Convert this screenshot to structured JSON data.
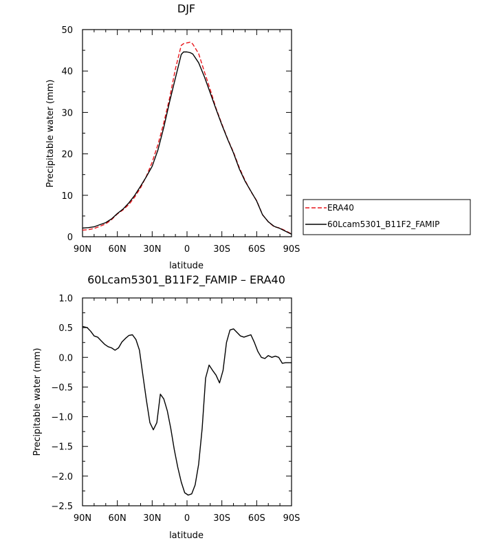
{
  "colors": {
    "era40": "#e8141a",
    "model": "#000000",
    "axis": "#000000"
  },
  "chart_data": [
    {
      "type": "line",
      "title": "DJF",
      "xlabel": "latitude",
      "ylabel": "Precipitable water (mm)",
      "xlim": [
        90,
        -90
      ],
      "ylim": [
        0,
        50
      ],
      "xticks": [
        90,
        60,
        30,
        0,
        -30,
        -60,
        -90
      ],
      "xtick_labels": [
        "90N",
        "60N",
        "30N",
        "0",
        "30S",
        "60S",
        "90S"
      ],
      "yticks": [
        0,
        10,
        20,
        30,
        40,
        50
      ],
      "ytick_labels": [
        "0",
        "10",
        "20",
        "30",
        "40",
        "50"
      ],
      "legend_position": "outside-right",
      "x": [
        90,
        85,
        80,
        75,
        70,
        65,
        60,
        55,
        50,
        45,
        40,
        35,
        30,
        25,
        20,
        15,
        10,
        5,
        3,
        0,
        -3,
        -5,
        -10,
        -15,
        -20,
        -25,
        -30,
        -35,
        -40,
        -45,
        -50,
        -55,
        -60,
        -65,
        -70,
        -75,
        -80,
        -85,
        -90
      ],
      "series": [
        {
          "name": "ERA40",
          "style": "dashed",
          "color": "#e8141a",
          "values": [
            1.6,
            1.7,
            2.0,
            2.5,
            3.1,
            4.1,
            5.5,
            6.5,
            7.8,
            9.6,
            11.8,
            14.6,
            18.0,
            22.3,
            27.5,
            33.5,
            40.5,
            46.2,
            46.6,
            46.8,
            47.0,
            46.5,
            44.2,
            39.8,
            35.5,
            31.0,
            27.2,
            23.6,
            20.4,
            16.7,
            13.6,
            10.9,
            8.7,
            5.3,
            3.6,
            2.4,
            2.1,
            1.4,
            0.7
          ]
        },
        {
          "name": "60Lcam5301_B11F2_FAMIP",
          "style": "solid",
          "color": "#000000",
          "values": [
            2.1,
            2.2,
            2.4,
            2.9,
            3.4,
            4.3,
            5.6,
            6.7,
            8.2,
            10.0,
            12.2,
            14.5,
            17.0,
            21.0,
            26.4,
            32.6,
            38.3,
            44.0,
            44.6,
            44.6,
            44.4,
            44.1,
            42.0,
            38.6,
            34.7,
            30.8,
            27.0,
            23.5,
            20.2,
            16.4,
            13.4,
            11.0,
            8.6,
            5.3,
            3.6,
            2.5,
            2.0,
            1.3,
            0.6
          ]
        }
      ]
    },
    {
      "type": "line",
      "title": "60Lcam5301_B11F2_FAMIP – ERA40",
      "xlabel": "latitude",
      "ylabel": "Precipitable water (mm)",
      "xlim": [
        90,
        -90
      ],
      "ylim": [
        -2.5,
        1.0
      ],
      "xticks": [
        90,
        60,
        30,
        0,
        -30,
        -60,
        -90
      ],
      "xtick_labels": [
        "90N",
        "60N",
        "30N",
        "0",
        "30S",
        "60S",
        "90S"
      ],
      "yticks": [
        1.0,
        0.5,
        0.0,
        -0.5,
        -1.0,
        -1.5,
        -2.0,
        -2.5
      ],
      "ytick_labels": [
        "1.0",
        "0.5",
        "0.0",
        "−0.5",
        "−1.0",
        "−1.5",
        "−2.0",
        "−2.5"
      ],
      "x": [
        90,
        86,
        83,
        80,
        77,
        74,
        71,
        68,
        65,
        62,
        59,
        56,
        53,
        50,
        47,
        44,
        41,
        38,
        35,
        32,
        29,
        26,
        23,
        20,
        17,
        14,
        11,
        8,
        5,
        2,
        -1,
        -4,
        -7,
        -10,
        -13,
        -16,
        -19,
        -22,
        -25,
        -28,
        -31,
        -34,
        -37,
        -40,
        -43,
        -46,
        -49,
        -52,
        -55,
        -58,
        -61,
        -64,
        -67,
        -70,
        -73,
        -76,
        -79,
        -82,
        -85,
        -88,
        -90
      ],
      "series": [
        {
          "name": "",
          "color": "#000000",
          "values": [
            0.52,
            0.5,
            0.44,
            0.36,
            0.34,
            0.28,
            0.22,
            0.18,
            0.16,
            0.12,
            0.16,
            0.26,
            0.32,
            0.37,
            0.38,
            0.3,
            0.12,
            -0.3,
            -0.72,
            -1.1,
            -1.22,
            -1.1,
            -0.62,
            -0.7,
            -0.9,
            -1.2,
            -1.55,
            -1.85,
            -2.1,
            -2.28,
            -2.32,
            -2.3,
            -2.15,
            -1.8,
            -1.2,
            -0.35,
            -0.13,
            -0.22,
            -0.3,
            -0.43,
            -0.22,
            0.25,
            0.46,
            0.48,
            0.42,
            0.36,
            0.34,
            0.36,
            0.38,
            0.25,
            0.1,
            0.0,
            -0.02,
            0.03,
            0.0,
            0.02,
            0.0,
            -0.1,
            -0.09,
            -0.09,
            -0.09
          ]
        }
      ]
    }
  ]
}
